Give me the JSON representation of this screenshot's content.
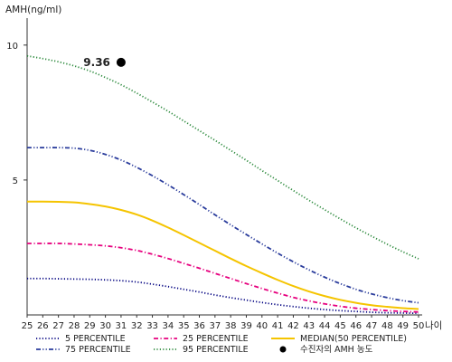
{
  "chart_data": {
    "type": "line",
    "title": "",
    "ylabel": "AMH(ng/ml)",
    "xlabel": "나이",
    "x": [
      25,
      26,
      27,
      28,
      29,
      30,
      31,
      32,
      33,
      34,
      35,
      36,
      37,
      38,
      39,
      40,
      41,
      42,
      43,
      44,
      45,
      46,
      47,
      48,
      49,
      50
    ],
    "xlim": [
      25,
      50
    ],
    "ylim": [
      0,
      11
    ],
    "yticks": [
      5,
      10
    ],
    "grid": false,
    "legend_position": "bottom",
    "series": [
      {
        "name": "5 PERCENTILE",
        "color": "#000080",
        "dash": "dotted",
        "values": [
          1.35,
          1.35,
          1.34,
          1.33,
          1.32,
          1.3,
          1.27,
          1.22,
          1.14,
          1.05,
          0.95,
          0.85,
          0.74,
          0.64,
          0.55,
          0.46,
          0.38,
          0.31,
          0.25,
          0.2,
          0.16,
          0.13,
          0.1,
          0.08,
          0.07,
          0.06
        ]
      },
      {
        "name": "25 PERCENTILE",
        "color": "#e6007e",
        "dash": "dashdot",
        "values": [
          2.65,
          2.65,
          2.65,
          2.63,
          2.6,
          2.56,
          2.49,
          2.39,
          2.25,
          2.09,
          1.91,
          1.73,
          1.54,
          1.35,
          1.16,
          0.98,
          0.81,
          0.65,
          0.52,
          0.41,
          0.32,
          0.25,
          0.2,
          0.16,
          0.13,
          0.11
        ]
      },
      {
        "name": "MEDIAN(50 PERCENTILE)",
        "color": "#f5c400",
        "dash": "solid",
        "values": [
          4.2,
          4.2,
          4.19,
          4.17,
          4.11,
          4.02,
          3.89,
          3.72,
          3.5,
          3.24,
          2.96,
          2.67,
          2.38,
          2.09,
          1.81,
          1.55,
          1.3,
          1.07,
          0.87,
          0.7,
          0.56,
          0.45,
          0.36,
          0.3,
          0.25,
          0.22
        ]
      },
      {
        "name": "75 PERCENTILE",
        "color": "#2a3c9c",
        "dash": "dashdotdot",
        "values": [
          6.2,
          6.2,
          6.2,
          6.18,
          6.1,
          5.95,
          5.74,
          5.47,
          5.16,
          4.82,
          4.46,
          4.09,
          3.71,
          3.34,
          2.98,
          2.63,
          2.29,
          1.97,
          1.67,
          1.4,
          1.16,
          0.95,
          0.78,
          0.64,
          0.53,
          0.45
        ]
      },
      {
        "name": "95 PERCENTILE",
        "color": "#2e8b3e",
        "dash": "dotted",
        "values": [
          9.6,
          9.5,
          9.38,
          9.23,
          9.04,
          8.8,
          8.53,
          8.22,
          7.89,
          7.55,
          7.19,
          6.83,
          6.47,
          6.1,
          5.73,
          5.35,
          4.98,
          4.61,
          4.25,
          3.9,
          3.56,
          3.23,
          2.92,
          2.62,
          2.34,
          2.08
        ]
      }
    ],
    "point": {
      "name": "수진자의 AMH 농도",
      "x": 31,
      "y": 9.36,
      "label": "9.36",
      "color": "#000000"
    }
  }
}
